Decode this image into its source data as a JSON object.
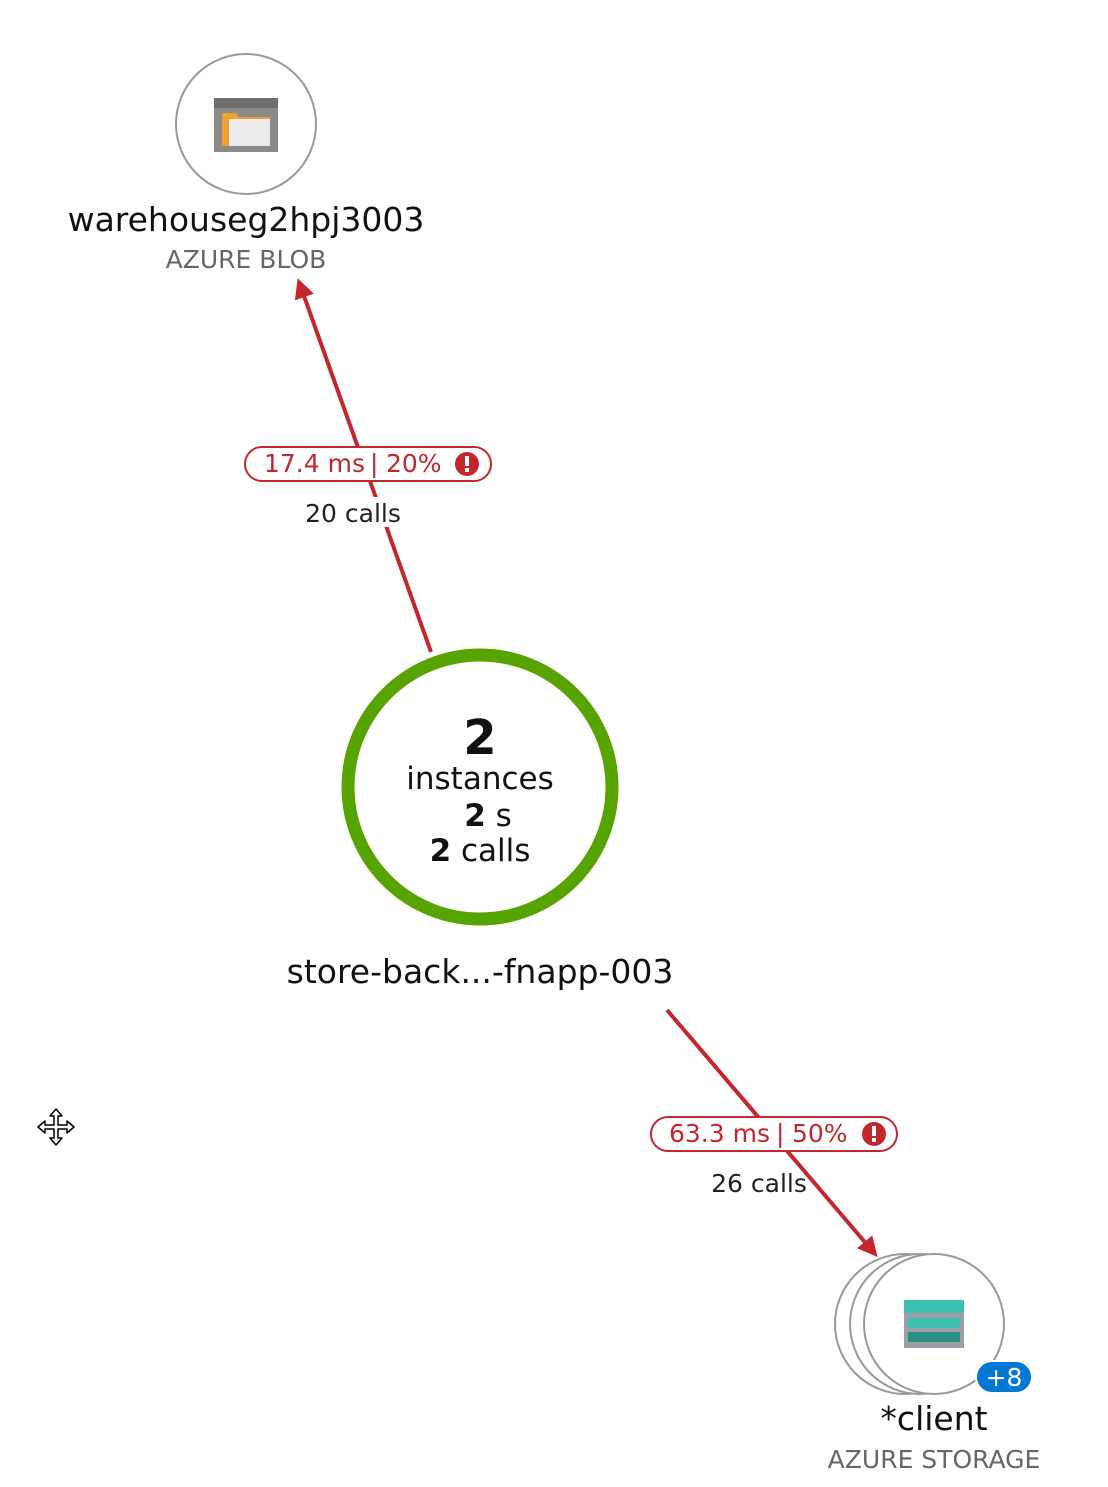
{
  "nodes": {
    "blob": {
      "name": "warehouseg2hpj3003",
      "type": "AZURE BLOB",
      "icon": "blob-storage-icon"
    },
    "app": {
      "instances_count": "2",
      "instances_label": "instances",
      "duration_value": "2",
      "duration_unit": "s",
      "calls_value": "2",
      "calls_label": "calls",
      "name": "store-back...-fnapp-003",
      "ring_color": "#57a300"
    },
    "client": {
      "name": "*client",
      "type": "AZURE STORAGE",
      "icon": "azure-storage-icon",
      "more_badge": "+8"
    }
  },
  "edges": [
    {
      "id": "app-to-blob",
      "duration": "17.4 ms",
      "failure_rate": "20%",
      "calls": "20 calls",
      "color": "#c4262e"
    },
    {
      "id": "app-to-client",
      "duration": "63.3 ms",
      "failure_rate": "50%",
      "calls": "26 calls",
      "color": "#c4262e"
    }
  ],
  "colors": {
    "error": "#c4262e",
    "healthy": "#57a300",
    "node_border": "#999999",
    "badge": "#0078d4"
  },
  "icons": {
    "move_cursor": "move-cursor-icon",
    "error": "error-exclamation-icon"
  }
}
